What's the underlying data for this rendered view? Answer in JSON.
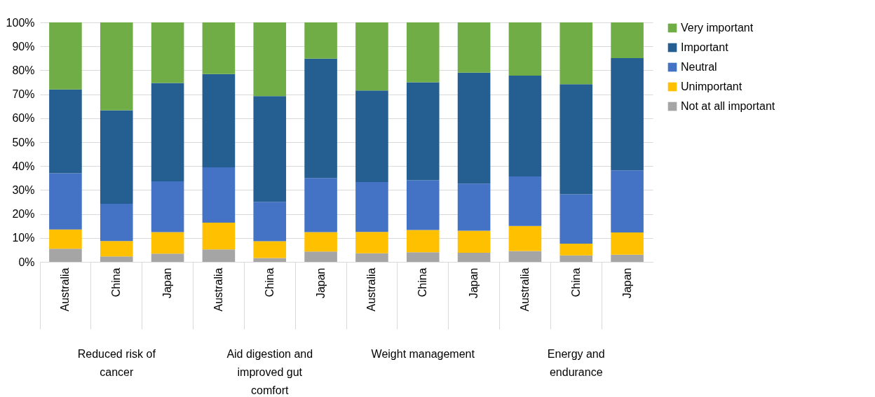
{
  "chart_data": {
    "type": "bar",
    "stacked": true,
    "categories": [
      "Australia",
      "China",
      "Japan",
      "Australia",
      "China",
      "Japan",
      "Australia",
      "China",
      "Japan",
      "Australia",
      "China",
      "Japan"
    ],
    "series": [
      {
        "name": "Not at all important",
        "color": "#a5a5a5",
        "values": [
          5.5,
          2.3,
          3.4,
          5.2,
          1.6,
          4.3,
          3.6,
          4.0,
          3.8,
          4.5,
          2.7,
          3.0
        ]
      },
      {
        "name": "Unimportant",
        "color": "#ffc000",
        "values": [
          8.0,
          6.4,
          9.0,
          11.2,
          7.0,
          8.1,
          8.9,
          9.3,
          9.2,
          10.5,
          4.9,
          9.3
        ]
      },
      {
        "name": "Neutral",
        "color": "#4472c4",
        "values": [
          23.5,
          15.6,
          21.2,
          23.1,
          16.5,
          22.6,
          20.8,
          20.8,
          19.7,
          20.7,
          20.6,
          25.9
        ]
      },
      {
        "name": "Important",
        "color": "#255e91",
        "values": [
          35.0,
          39.0,
          41.1,
          38.9,
          44.1,
          49.9,
          38.3,
          40.9,
          46.3,
          42.1,
          46.0,
          46.9
        ]
      },
      {
        "name": "Very important",
        "color": "#70ad47",
        "values": [
          28.0,
          36.7,
          25.3,
          21.6,
          30.8,
          15.1,
          28.4,
          25.0,
          21.0,
          22.2,
          25.8,
          14.9
        ]
      }
    ],
    "ylim": [
      0,
      100
    ],
    "yticks": [
      {
        "value": 0,
        "label": "0%"
      },
      {
        "value": 10,
        "label": "10%"
      },
      {
        "value": 20,
        "label": "20%"
      },
      {
        "value": 30,
        "label": "30%"
      },
      {
        "value": 40,
        "label": "40%"
      },
      {
        "value": 50,
        "label": "50%"
      },
      {
        "value": 60,
        "label": "60%"
      },
      {
        "value": 70,
        "label": "70%"
      },
      {
        "value": 80,
        "label": "80%"
      },
      {
        "value": 90,
        "label": "90%"
      },
      {
        "value": 100,
        "label": "100%"
      }
    ],
    "grid": "y",
    "legend": "right",
    "annotations": [
      "Reduced risk of cancer",
      "Aid digestion and improved gut comfort",
      "Weight management",
      "Energy and endurance"
    ]
  }
}
